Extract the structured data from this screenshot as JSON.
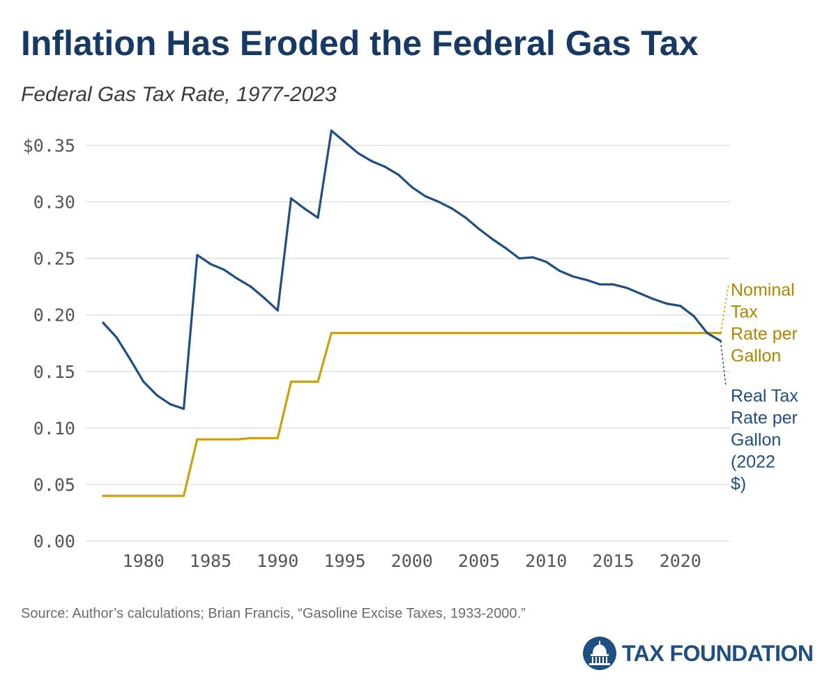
{
  "header": {
    "title": "Inflation Has Eroded the Federal Gas Tax",
    "subtitle": "Federal Gas Tax Rate, 1977-2023"
  },
  "footer": {
    "source": "Source: Author’s calculations; Brian Francis, “Gasoline Excise Taxes, 1933-2000.”",
    "logo_text": "TAX FOUNDATION"
  },
  "colors": {
    "nominal": "#c9a20c",
    "real": "#1f4e82",
    "title": "#173a64",
    "grid": "#d9d9d9"
  },
  "chart_data": {
    "type": "line",
    "title": "Inflation Has Eroded the Federal Gas Tax",
    "subtitle": "Federal Gas Tax Rate, 1977-2023",
    "xlabel": "",
    "ylabel": "",
    "xlim": [
      1975.7,
      2023.7
    ],
    "ylim": [
      0,
      0.37
    ],
    "grid": true,
    "x_ticks": [
      1980,
      1985,
      1990,
      1995,
      2000,
      2005,
      2010,
      2015,
      2020
    ],
    "x_tick_labels": [
      "1980",
      "1985",
      "1990",
      "1995",
      "2000",
      "2005",
      "2010",
      "2015",
      "2020"
    ],
    "y_ticks": [
      0,
      0.05,
      0.1,
      0.15,
      0.2,
      0.25,
      0.3,
      0.35
    ],
    "y_tick_labels": [
      "0.00",
      "0.05",
      "0.10",
      "0.15",
      "0.20",
      "0.25",
      "0.30",
      "$0.35"
    ],
    "x": [
      1977,
      1978,
      1979,
      1980,
      1981,
      1982,
      1983,
      1984,
      1985,
      1986,
      1987,
      1988,
      1989,
      1990,
      1991,
      1992,
      1993,
      1994,
      1995,
      1996,
      1997,
      1998,
      1999,
      2000,
      2001,
      2002,
      2003,
      2004,
      2005,
      2006,
      2007,
      2008,
      2009,
      2010,
      2011,
      2012,
      2013,
      2014,
      2015,
      2016,
      2017,
      2018,
      2019,
      2020,
      2021,
      2022,
      2023
    ],
    "series": [
      {
        "name": "Real Tax Rate per Gallon (2022 $)",
        "label_lines": [
          "Real Tax",
          "Rate per",
          "Gallon",
          "(2022",
          "$)"
        ],
        "values": [
          0.193,
          0.18,
          0.161,
          0.141,
          0.129,
          0.121,
          0.117,
          0.253,
          0.245,
          0.24,
          0.232,
          0.225,
          0.215,
          0.204,
          0.303,
          0.294,
          0.286,
          0.363,
          0.353,
          0.343,
          0.336,
          0.331,
          0.324,
          0.313,
          0.305,
          0.3,
          0.294,
          0.286,
          0.276,
          0.267,
          0.259,
          0.25,
          0.251,
          0.247,
          0.239,
          0.234,
          0.231,
          0.227,
          0.227,
          0.224,
          0.219,
          0.214,
          0.21,
          0.208,
          0.199,
          0.184,
          0.177
        ]
      },
      {
        "name": "Nominal Tax Rate per Gallon",
        "label_lines": [
          "Nominal",
          "Tax",
          "Rate per",
          "Gallon"
        ],
        "values": [
          0.04,
          0.04,
          0.04,
          0.04,
          0.04,
          0.04,
          0.04,
          0.09,
          0.09,
          0.09,
          0.09,
          0.091,
          0.091,
          0.091,
          0.141,
          0.141,
          0.141,
          0.184,
          0.184,
          0.184,
          0.184,
          0.184,
          0.184,
          0.184,
          0.184,
          0.184,
          0.184,
          0.184,
          0.184,
          0.184,
          0.184,
          0.184,
          0.184,
          0.184,
          0.184,
          0.184,
          0.184,
          0.184,
          0.184,
          0.184,
          0.184,
          0.184,
          0.184,
          0.184,
          0.184,
          0.184,
          0.184
        ]
      }
    ]
  }
}
